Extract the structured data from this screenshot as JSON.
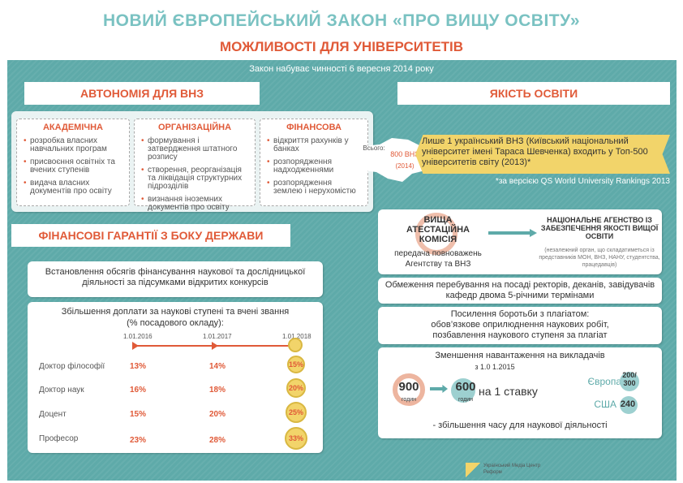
{
  "header": {
    "title": "НОВИЙ ЄВРОПЕЙСЬКИЙ ЗАКОН «ПРО ВИЩУ ОСВІТУ»",
    "subtitle": "МОЖЛИВОСТІ ДЛЯ УНІВЕРСИТЕТІВ",
    "effective_date": "Закон набуває чинності 6 вересня 2014 року"
  },
  "autonomy": {
    "heading": "АВТОНОМІЯ ДЛЯ ВНЗ",
    "groups": [
      {
        "label": "АКАДЕМІЧНА",
        "items": [
          "розробка власних навчальних програм",
          "присвоєння освітніх та вчених ступенів",
          "видача власних документів про освіту"
        ]
      },
      {
        "label": "ОРГАНІЗАЦІЙНА",
        "items": [
          "формування і затвердження штатного розпису",
          "створення, реорганізація та ліквідація структурних підрозділів",
          "визнання іноземних документів про освіту"
        ]
      },
      {
        "label": "ФІНАНСОВА",
        "items": [
          "відкриття рахунків у банках",
          "розпорядження надходженнями",
          "розпорядження землею і нерухомістю"
        ]
      }
    ]
  },
  "quality": {
    "heading": "ЯКІСТЬ ОСВІТИ",
    "map_total": "Всього:",
    "map_count": "800 ВНЗ",
    "map_year": "(2014)",
    "ranking_text": "Лише 1 український ВНЗ (Київський національний університет імені Тараса Шевченка) входить у Топ-500 університетів світу (2013)*",
    "ranking_note": "*за версією QS World University Rankings 2013",
    "vak": "ВИЩА АТЕСТАЦІЙНА КОМІСІЯ",
    "transfer": "передача повноважень Агентству та ВНЗ",
    "agency_title": "НАЦІОНАЛЬНЕ АГЕНСТВО ІЗ ЗАБЕЗПЕЧЕННЯ ЯКОСТІ ВИЩОЇ ОСВІТИ",
    "agency_note": "(незалежний орган, що складатиметься із представників МОН, ВНЗ, НАНУ, студентства, працедавців)",
    "term_limit": "Обмеження перебування на посаді ректорів, деканів, завідувачів кафедр двома 5-річними термінами",
    "plagiarism_title": "Посилення боротьби з плагіатом:",
    "plagiarism_items": [
      "обов’язкове оприлюднення наукових робіт,",
      "позбавлення наукового ступеня за плагіат"
    ],
    "workload_title": "Зменшення навантаження на викладачів",
    "workload_date": "з 1.0 1.2015",
    "hours_old": "900",
    "hours_new": "600",
    "hours_unit": "годин",
    "per_rate": "на 1 ставку",
    "europe": "Європа",
    "europe_val": "200/ 300",
    "usa": "США",
    "usa_val": "240",
    "research_time": "- збільшення часу для наукової діяльності"
  },
  "finance": {
    "heading": "ФІНАНСОВІ ГАРАНТІЇ З БОКУ ДЕРЖАВИ",
    "volumes": "Встановлення обсягів фінансування наукової та дослідницької діяльності за підсумками відкритих конкурсів",
    "bonus_title": "Збільшення доплати за наукові ступені та вчені звання",
    "bonus_subtitle": "(% посадового окладу):",
    "dates": [
      "1.01.2016",
      "1.01.2017",
      "1.01.2018"
    ],
    "rows": [
      {
        "label": "Доктор філософії",
        "values": [
          "13%",
          "14%",
          "15%"
        ]
      },
      {
        "label": "Доктор наук",
        "values": [
          "16%",
          "18%",
          "20%"
        ]
      },
      {
        "label": "Доцент",
        "values": [
          "15%",
          "20%",
          "25%"
        ]
      },
      {
        "label": "Професор",
        "values": [
          "23%",
          "28%",
          "33%"
        ]
      }
    ]
  },
  "footer": {
    "logo_line1": "Український Медіа Центр",
    "logo_line2": "Реформ"
  },
  "colors": {
    "teal": "#5eaaa9",
    "accent": "#e05a38",
    "yellow": "#f2d46a"
  }
}
